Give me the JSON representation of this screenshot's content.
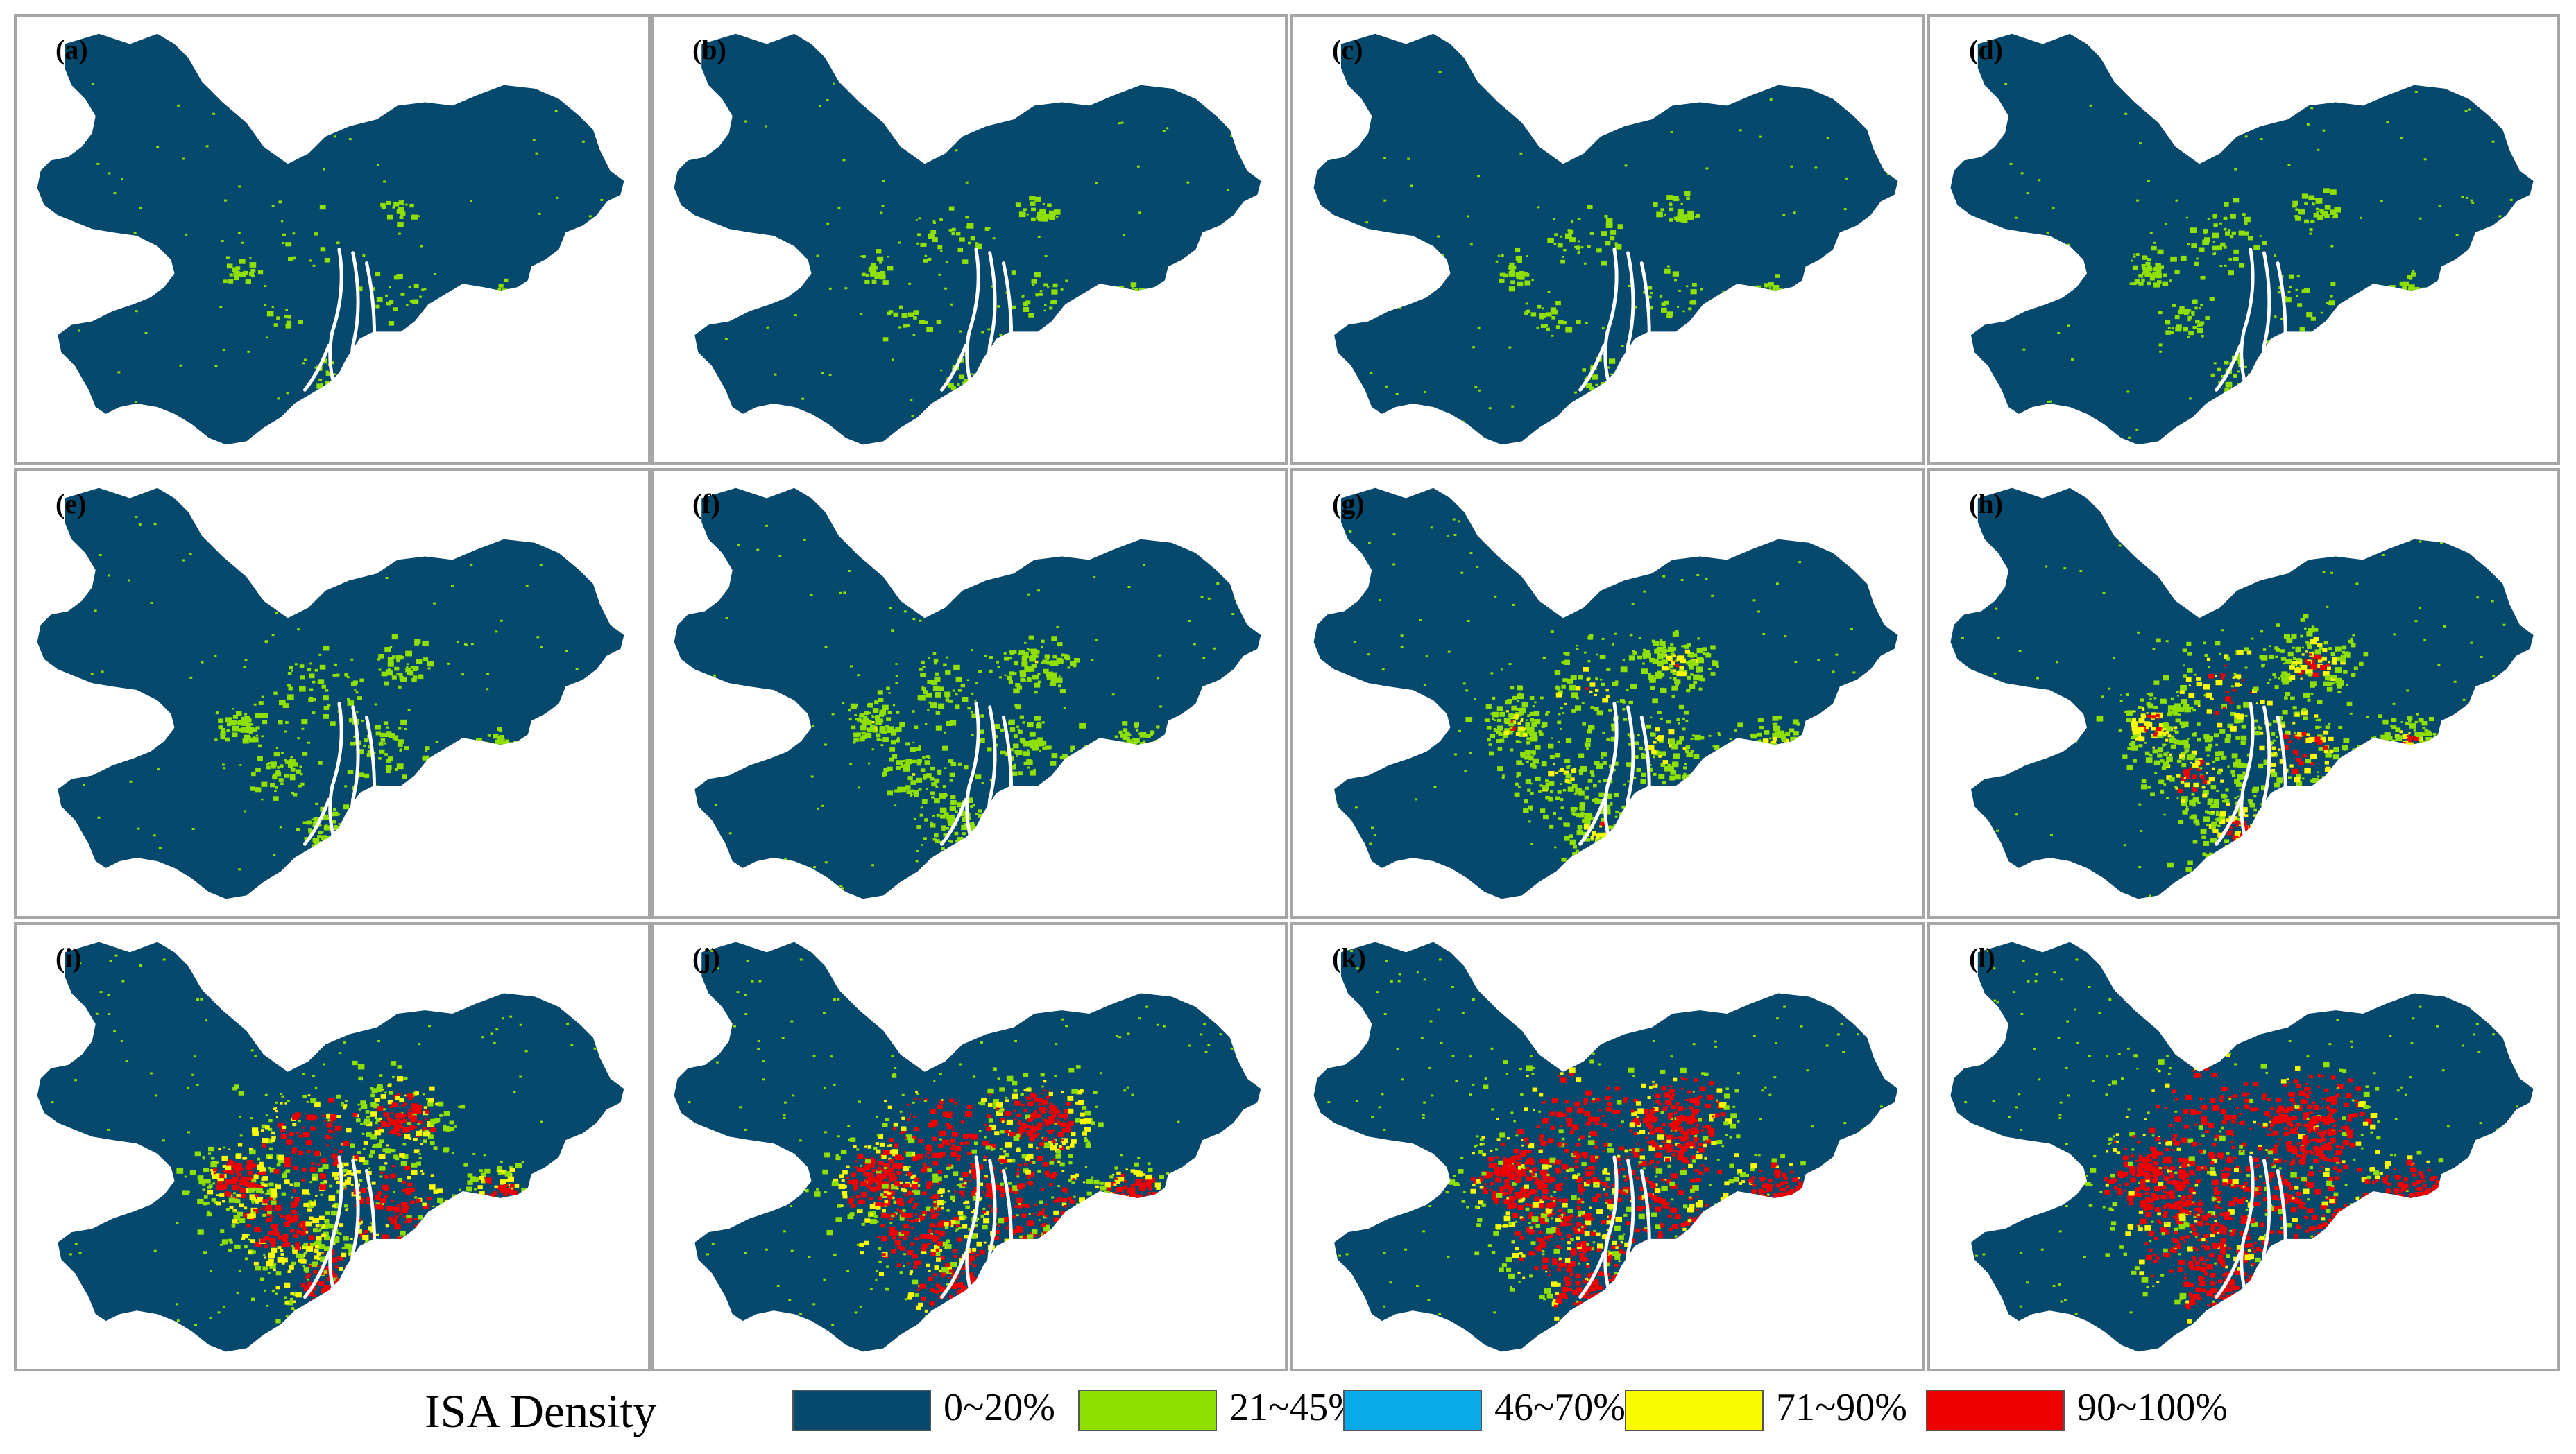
{
  "panels": [
    {
      "label": "(a)",
      "level": 0.05
    },
    {
      "label": "(b)",
      "level": 0.08
    },
    {
      "label": "(c)",
      "level": 0.1
    },
    {
      "label": "(d)",
      "level": 0.14
    },
    {
      "label": "(e)",
      "level": 0.22
    },
    {
      "label": "(f)",
      "level": 0.35
    },
    {
      "label": "(g)",
      "level": 0.45
    },
    {
      "label": "(h)",
      "level": 0.55
    },
    {
      "label": "(i)",
      "level": 0.68
    },
    {
      "label": "(j)",
      "level": 0.78
    },
    {
      "label": "(k)",
      "level": 0.86
    },
    {
      "label": "(l)",
      "level": 0.95
    }
  ],
  "legend": {
    "title": "ISA Density",
    "items": [
      {
        "label": "0~20%",
        "color": "#07486d"
      },
      {
        "label": "21~45%",
        "color": "#8fe000"
      },
      {
        "label": "46~70%",
        "color": "#0aaae8"
      },
      {
        "label": "71~90%",
        "color": "#fcfc00"
      },
      {
        "label": "90~100%",
        "color": "#ee0000"
      }
    ]
  },
  "colors": {
    "region": "#07486d",
    "low": "#8fe000",
    "mid": "#fcfc00",
    "high": "#ee0000"
  }
}
